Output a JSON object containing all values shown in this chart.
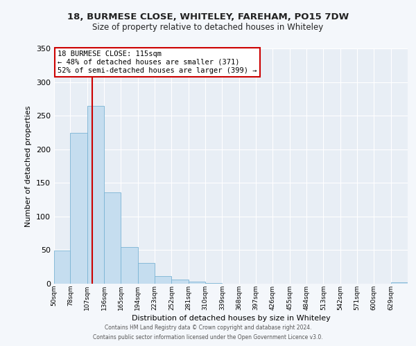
{
  "title1": "18, BURMESE CLOSE, WHITELEY, FAREHAM, PO15 7DW",
  "title2": "Size of property relative to detached houses in Whiteley",
  "xlabel": "Distribution of detached houses by size in Whiteley",
  "ylabel": "Number of detached properties",
  "bar_values": [
    49,
    224,
    265,
    136,
    55,
    31,
    11,
    6,
    3,
    1,
    0,
    0,
    0,
    0,
    0,
    0,
    0,
    0,
    0,
    0,
    2
  ],
  "bin_labels": [
    "50sqm",
    "78sqm",
    "107sqm",
    "136sqm",
    "165sqm",
    "194sqm",
    "223sqm",
    "252sqm",
    "281sqm",
    "310sqm",
    "339sqm",
    "368sqm",
    "397sqm",
    "426sqm",
    "455sqm",
    "484sqm",
    "513sqm",
    "542sqm",
    "571sqm",
    "600sqm",
    "629sqm"
  ],
  "bin_edges": [
    50,
    78,
    107,
    136,
    165,
    194,
    223,
    252,
    281,
    310,
    339,
    368,
    397,
    426,
    455,
    484,
    513,
    542,
    571,
    600,
    629,
    658
  ],
  "bar_color": "#c5ddef",
  "bar_edge_color": "#7ab3d4",
  "fig_bg_color": "#f4f7fb",
  "plot_bg_color": "#e8eef5",
  "grid_color": "#ffffff",
  "vline_x": 115,
  "vline_color": "#cc0000",
  "ylim": [
    0,
    350
  ],
  "yticks": [
    0,
    50,
    100,
    150,
    200,
    250,
    300,
    350
  ],
  "annotation_title": "18 BURMESE CLOSE: 115sqm",
  "annotation_line1": "← 48% of detached houses are smaller (371)",
  "annotation_line2": "52% of semi-detached houses are larger (399) →",
  "annotation_box_color": "#ffffff",
  "annotation_box_edge": "#cc0000",
  "footer1": "Contains HM Land Registry data © Crown copyright and database right 2024.",
  "footer2": "Contains public sector information licensed under the Open Government Licence v3.0."
}
